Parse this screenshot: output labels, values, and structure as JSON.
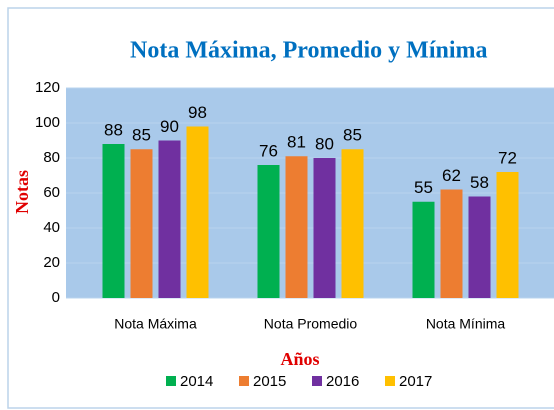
{
  "chart_data": {
    "type": "bar",
    "title": "Nota Máxima, Promedio y Mínima",
    "x_label": "Años",
    "y_label": "Notas",
    "categories": [
      "Nota Máxima",
      "Nota Promedio",
      "Nota Mínima"
    ],
    "series": [
      {
        "name": "2014",
        "color": "#00b050",
        "values": [
          88,
          76,
          55
        ]
      },
      {
        "name": "2015",
        "color": "#ed7d31",
        "values": [
          85,
          81,
          62
        ]
      },
      {
        "name": "2016",
        "color": "#7030a0",
        "values": [
          90,
          80,
          58
        ]
      },
      {
        "name": "2017",
        "color": "#ffc000",
        "values": [
          98,
          85,
          72
        ]
      }
    ],
    "ylim": [
      0,
      120
    ],
    "yticks": [
      0,
      20,
      40,
      60,
      80,
      100,
      120
    ],
    "grid": true,
    "legend": "bottom"
  }
}
